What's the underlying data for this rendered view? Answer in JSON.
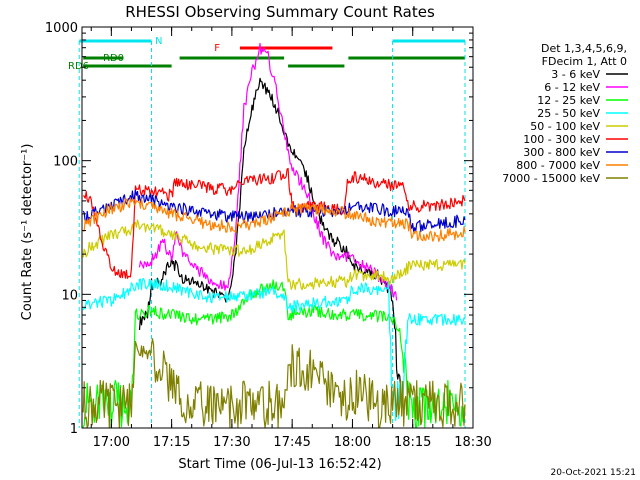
{
  "chart_data": {
    "type": "line",
    "title": "RHESSI Observing Summary Count Rates",
    "xlabel": "Start Time (06-Jul-13 16:52:42)",
    "ylabel": "Count Rate (s⁻¹ detector⁻¹)",
    "y_scale": "log",
    "ylim": [
      1,
      1000
    ],
    "xlim": [
      "16:52:42",
      "18:30:00"
    ],
    "x_ticks": [
      "17:00",
      "17:15",
      "17:30",
      "17:45",
      "18:00",
      "18:15",
      "18:30"
    ],
    "y_ticks": [
      "1",
      "10",
      "100",
      "1000"
    ],
    "legend_header": [
      "Det 1,3,4,5,6,9,",
      "FDecim 1, Att 0"
    ],
    "legend_position": "right",
    "timestamp": "20-Oct-2021 15:21",
    "flags": [
      {
        "label": "N",
        "color": "#00e5ee",
        "segments": [
          [
            "16:52",
            "17:10"
          ],
          [
            "18:10",
            "18:28"
          ]
        ]
      },
      {
        "label": "F",
        "color": "#ff0000",
        "segments": [
          [
            "17:32",
            "17:55"
          ]
        ]
      },
      {
        "label": "RD0",
        "color": "#008000",
        "segments": [
          [
            "16:53",
            "17:03"
          ],
          [
            "17:17",
            "17:43"
          ],
          [
            "17:59",
            "18:28"
          ]
        ]
      },
      {
        "label": "RD6",
        "color": "#008000",
        "segments": [
          [
            "16:53",
            "17:15"
          ],
          [
            "17:44",
            "17:58"
          ]
        ]
      }
    ],
    "series": [
      {
        "name": "3 - 6 keV",
        "color": "#000000",
        "x": [
          "16:55",
          "17:00",
          "17:05",
          "17:07",
          "17:08",
          "17:09",
          "17:10",
          "17:12",
          "17:15",
          "17:18",
          "17:21",
          "17:24",
          "17:27",
          "17:29",
          "17:31",
          "17:33",
          "17:35",
          "17:37",
          "17:39",
          "17:41",
          "17:43",
          "17:45",
          "17:47",
          "17:49",
          "17:51",
          "17:53",
          "17:55",
          "17:58",
          "18:00",
          "18:03",
          "18:06",
          "18:07",
          "18:09",
          "18:10",
          "18:11",
          "18:12"
        ],
        "y": [
          null,
          null,
          null,
          6,
          7,
          7,
          12,
          12,
          18,
          13,
          12,
          11,
          10,
          9,
          20,
          120,
          250,
          380,
          330,
          250,
          160,
          120,
          100,
          70,
          45,
          30,
          26,
          22,
          17,
          15,
          14,
          13,
          11,
          9,
          4,
          2
        ]
      },
      {
        "name": "6 - 12 keV",
        "color": "#ff00ff",
        "x": [
          "17:07",
          "17:09",
          "17:11",
          "17:13",
          "17:14",
          "17:15",
          "17:16",
          "17:18",
          "17:21",
          "17:24",
          "17:27",
          "17:29",
          "17:31",
          "17:33",
          "17:35",
          "17:37",
          "17:39",
          "17:41",
          "17:43",
          "17:45",
          "17:47",
          "17:49",
          "17:51",
          "17:53",
          "17:55",
          "17:57",
          "17:59",
          "18:01",
          "18:04",
          "18:06",
          "18:08",
          "18:10",
          "18:11"
        ],
        "y": [
          17,
          16,
          20,
          25,
          20,
          19,
          28,
          20,
          16,
          13,
          12,
          11,
          30,
          250,
          450,
          680,
          600,
          350,
          160,
          90,
          70,
          55,
          35,
          25,
          20,
          18,
          20,
          17,
          16,
          14,
          12,
          11,
          9
        ]
      },
      {
        "name": "12 - 25 keV",
        "color": "#00ff00",
        "x": [
          "16:53",
          "16:55",
          "17:00",
          "17:05",
          "17:06",
          "17:10",
          "17:15",
          "17:20",
          "17:25",
          "17:30",
          "17:32",
          "17:35",
          "17:40",
          "17:43",
          "17:44",
          "17:50",
          "17:55",
          "17:59",
          "18:00",
          "18:05",
          "18:10",
          "18:12",
          "18:14",
          "18:20",
          "18:28"
        ],
        "y": [
          1.5,
          1.5,
          1.5,
          1.5,
          7,
          7.5,
          7,
          6.5,
          6.5,
          7,
          8,
          10,
          12,
          11,
          7,
          7.5,
          7,
          7,
          7,
          7,
          6.5,
          5.5,
          1.5,
          1.5,
          1.5
        ]
      },
      {
        "name": "25 - 50 keV",
        "color": "#00ffff",
        "x": [
          "16:53",
          "16:55",
          "17:00",
          "17:05",
          "17:06",
          "17:10",
          "17:15",
          "17:20",
          "17:25",
          "17:30",
          "17:35",
          "17:40",
          "17:43",
          "17:44",
          "17:50",
          "17:55",
          "17:59",
          "18:00",
          "18:05",
          "18:09",
          "18:10",
          "18:12",
          "18:14",
          "18:20",
          "18:28"
        ],
        "y": [
          8,
          8.5,
          9,
          11,
          12,
          12,
          11.5,
          10,
          9.5,
          9.5,
          10,
          10.5,
          10,
          8,
          8.5,
          9,
          9,
          11,
          11,
          10.5,
          1.5,
          1.5,
          6.5,
          6.5,
          6.5
        ]
      },
      {
        "name": "50 - 100 keV",
        "color": "#cccc00",
        "x": [
          "16:53",
          "16:55",
          "17:00",
          "17:05",
          "17:06",
          "17:10",
          "17:15",
          "17:20",
          "17:25",
          "17:30",
          "17:35",
          "17:40",
          "17:43",
          "17:44",
          "17:50",
          "17:55",
          "17:59",
          "18:00",
          "18:05",
          "18:10",
          "18:14",
          "18:20",
          "18:28"
        ],
        "y": [
          20,
          23,
          28,
          30,
          33,
          32,
          28,
          24,
          22,
          21,
          22,
          26,
          28,
          12,
          12,
          12.5,
          12.5,
          14,
          14,
          13,
          16,
          16.5,
          17
        ]
      },
      {
        "name": "100 - 300 keV",
        "color": "#ff0000",
        "x": [
          "16:53",
          "16:55",
          "17:00",
          "17:05",
          "17:06",
          "17:10",
          "17:15",
          "17:16",
          "17:20",
          "17:25",
          "17:30",
          "17:32",
          "17:35",
          "17:40",
          "17:44",
          "17:45",
          "17:50",
          "17:55",
          "17:58",
          "17:59",
          "18:00",
          "18:05",
          "18:10",
          "18:13",
          "18:14",
          "18:20",
          "18:28"
        ],
        "y": [
          60,
          48,
          15,
          14,
          60,
          58,
          55,
          70,
          66,
          62,
          60,
          68,
          70,
          74,
          80,
          45,
          45,
          44,
          43,
          75,
          75,
          70,
          65,
          62,
          45,
          46,
          50
        ]
      },
      {
        "name": "300 - 800 keV",
        "color": "#0000cc",
        "x": [
          "16:53",
          "16:55",
          "17:00",
          "17:05",
          "17:10",
          "17:15",
          "17:20",
          "17:25",
          "17:30",
          "17:35",
          "17:40",
          "17:45",
          "17:50",
          "17:55",
          "17:58",
          "18:00",
          "18:05",
          "18:10",
          "18:14",
          "18:15",
          "18:20",
          "18:28"
        ],
        "y": [
          38,
          40,
          46,
          55,
          52,
          46,
          42,
          40,
          38,
          38,
          40,
          42,
          42,
          42,
          42,
          45,
          44,
          42,
          40,
          32,
          33,
          36
        ]
      },
      {
        "name": "800 - 7000 keV",
        "color": "#ff8000",
        "x": [
          "16:53",
          "16:55",
          "17:00",
          "17:05",
          "17:10",
          "17:15",
          "17:20",
          "17:25",
          "17:30",
          "17:35",
          "17:40",
          "17:45",
          "17:50",
          "17:55",
          "18:00",
          "18:05",
          "18:10",
          "18:14",
          "18:15",
          "18:20",
          "18:28"
        ],
        "y": [
          32,
          36,
          44,
          48,
          46,
          40,
          36,
          33,
          32,
          33,
          38,
          43,
          44,
          42,
          40,
          36,
          34,
          33,
          27,
          27,
          29
        ]
      },
      {
        "name": "7000 - 15000 keV",
        "color": "#808000",
        "x": [
          "16:53",
          "17:00",
          "17:05",
          "17:06",
          "17:10",
          "17:15",
          "17:20",
          "17:25",
          "17:30",
          "17:35",
          "17:40",
          "17:43",
          "17:44",
          "17:50",
          "17:55",
          "17:59",
          "18:00",
          "18:05",
          "18:10",
          "18:14",
          "18:20",
          "18:28"
        ],
        "y": [
          1.5,
          1.5,
          1.5,
          4,
          3.5,
          2,
          1.5,
          1.5,
          1.5,
          1.5,
          1.5,
          1.5,
          3,
          2.5,
          2,
          1.5,
          2,
          1.5,
          1.5,
          1.5,
          1.5,
          1.5
        ]
      }
    ]
  }
}
